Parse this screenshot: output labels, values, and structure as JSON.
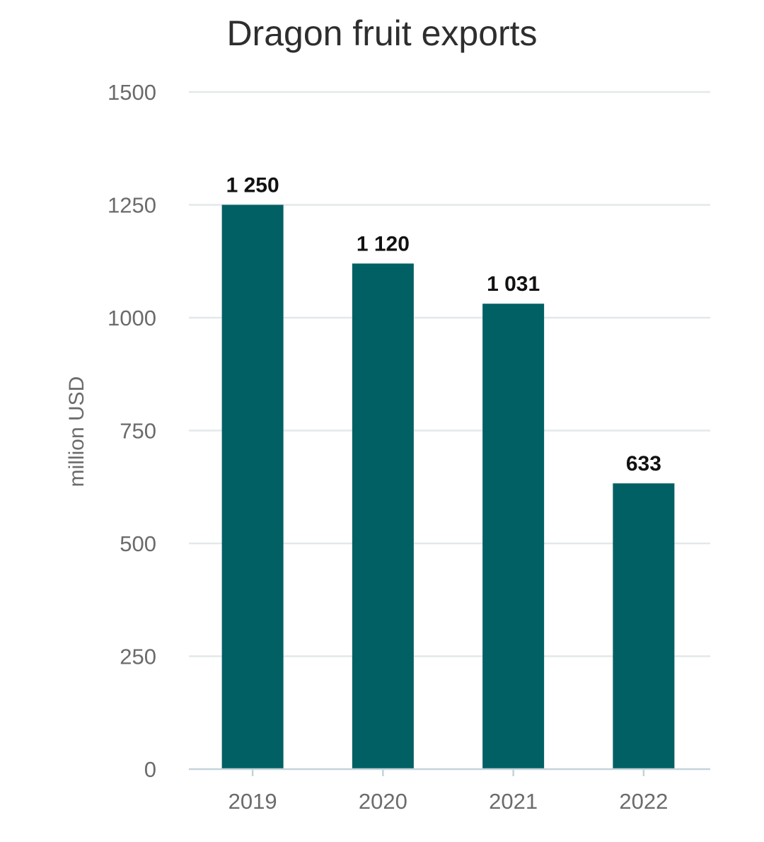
{
  "chart_data": {
    "type": "bar",
    "title": "Dragon fruit exports",
    "xlabel": "",
    "ylabel": "million USD",
    "categories": [
      "2019",
      "2020",
      "2021",
      "2022"
    ],
    "values": [
      1250,
      1120,
      1031,
      633
    ],
    "value_labels": [
      "1 250",
      "1 120",
      "1 031",
      "633"
    ],
    "ylim": [
      0,
      1500
    ],
    "yticks": [
      0,
      250,
      500,
      750,
      1000,
      1250,
      1500
    ],
    "grid": true,
    "bar_color": "#006064",
    "grid_color": "#e3e8ea",
    "axis_color": "#c5d3da"
  }
}
